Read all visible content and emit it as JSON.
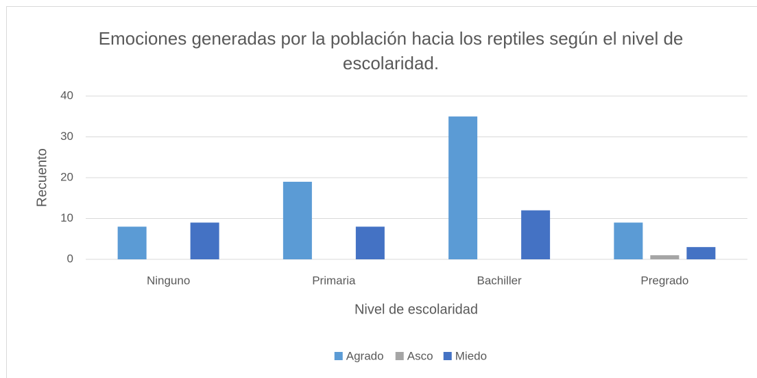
{
  "chart_data": {
    "type": "bar",
    "title": "Emociones generadas por la población hacia los reptiles según el nivel de escolaridad.",
    "x_label": "Nivel de escolaridad",
    "y_label": "Recuento",
    "categories": [
      "Ninguno",
      "Primaria",
      "Bachiller",
      "Pregrado"
    ],
    "series": [
      {
        "name": "Agrado",
        "color": "#5b9bd5",
        "values": [
          8,
          19,
          35,
          9
        ]
      },
      {
        "name": "Asco",
        "color": "#a5a5a5",
        "values": [
          0,
          0,
          0,
          1
        ]
      },
      {
        "name": "Miedo",
        "color": "#4472c4",
        "values": [
          9,
          8,
          12,
          3
        ]
      }
    ],
    "ylim": [
      0,
      40
    ],
    "yticks": [
      0,
      10,
      20,
      30,
      40
    ],
    "grid": true,
    "legend": "bottom"
  }
}
